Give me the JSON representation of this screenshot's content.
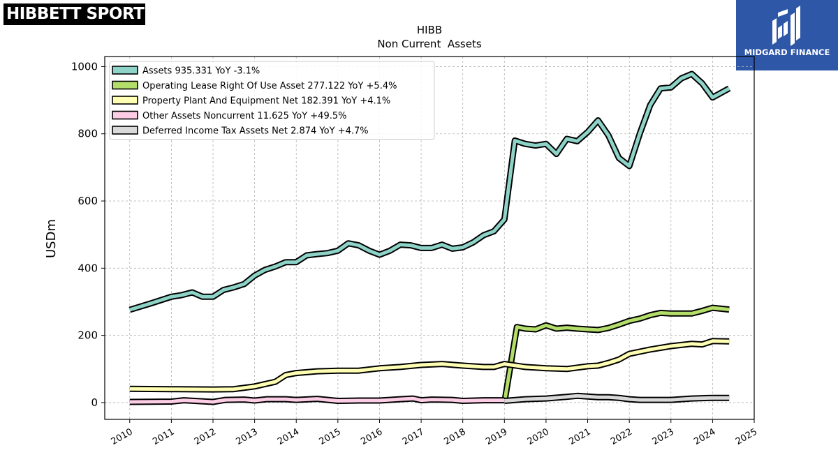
{
  "logos": {
    "left": {
      "text": "HIBBETT SPORTS",
      "mark": "®"
    },
    "right": {
      "text": "MIDGARD FINANCE",
      "icon": "midgard-m-icon"
    }
  },
  "chart_data": {
    "type": "line",
    "title": "HIBB",
    "subtitle": "Non Current  Assets",
    "ylabel": "USDm",
    "xlabel": "",
    "xlim": [
      2009.4,
      2025
    ],
    "ylim": [
      -50,
      1030
    ],
    "yticks": [
      0,
      200,
      400,
      600,
      800,
      1000
    ],
    "xticks": [
      2010,
      2011,
      2012,
      2013,
      2014,
      2015,
      2016,
      2017,
      2018,
      2019,
      2020,
      2021,
      2022,
      2023,
      2024,
      2025
    ],
    "grid": true,
    "legend_position": "top-left",
    "series": [
      {
        "name": "Assets  935.331 YoY -3.1%",
        "color": "#8dd3c7",
        "x": [
          2010.0,
          2010.5,
          2011.0,
          2011.25,
          2011.5,
          2011.75,
          2012.0,
          2012.25,
          2012.5,
          2012.75,
          2013.0,
          2013.25,
          2013.5,
          2013.75,
          2014.0,
          2014.25,
          2014.5,
          2014.75,
          2015.0,
          2015.25,
          2015.5,
          2015.75,
          2016.0,
          2016.25,
          2016.5,
          2016.75,
          2017.0,
          2017.25,
          2017.5,
          2017.75,
          2018.0,
          2018.25,
          2018.5,
          2018.75,
          2019.0,
          2019.25,
          2019.5,
          2019.75,
          2020.0,
          2020.25,
          2020.5,
          2020.75,
          2021.0,
          2021.25,
          2021.5,
          2021.75,
          2022.0,
          2022.25,
          2022.5,
          2022.75,
          2023.0,
          2023.25,
          2023.5,
          2023.75,
          2024.0,
          2024.4
        ],
        "values": [
          276,
          295,
          315,
          320,
          328,
          315,
          315,
          335,
          343,
          353,
          378,
          395,
          405,
          418,
          418,
          438,
          442,
          445,
          452,
          474,
          468,
          452,
          440,
          452,
          470,
          468,
          460,
          460,
          470,
          458,
          462,
          477,
          498,
          510,
          545,
          780,
          770,
          765,
          770,
          740,
          785,
          778,
          805,
          840,
          795,
          728,
          704,
          800,
          885,
          935,
          938,
          965,
          978,
          950,
          908,
          935
        ]
      },
      {
        "name": "Operating Lease Right Of Use Asset  277.122 YoY +5.4%",
        "color": "#b3de69",
        "x": [
          2019.0,
          2019.3,
          2019.5,
          2019.75,
          2020.0,
          2020.25,
          2020.5,
          2020.75,
          2021.0,
          2021.25,
          2021.5,
          2021.75,
          2022.0,
          2022.25,
          2022.5,
          2022.75,
          2023.0,
          2023.25,
          2023.5,
          2023.75,
          2024.0,
          2024.4
        ],
        "values": [
          0,
          225,
          220,
          218,
          230,
          220,
          223,
          220,
          218,
          216,
          222,
          232,
          243,
          250,
          260,
          267,
          265,
          265,
          265,
          273,
          282,
          277
        ]
      },
      {
        "name": "Property Plant And Equipment Net  182.391 YoY +4.1%",
        "color": "#ffffb3",
        "x": [
          2010.0,
          2011.0,
          2012.0,
          2012.5,
          2013.0,
          2013.5,
          2013.75,
          2014.0,
          2014.5,
          2015.0,
          2015.5,
          2016.0,
          2016.5,
          2017.0,
          2017.5,
          2018.0,
          2018.5,
          2018.75,
          2019.0,
          2019.5,
          2020.0,
          2020.5,
          2021.0,
          2021.25,
          2021.5,
          2021.75,
          2022.0,
          2022.5,
          2023.0,
          2023.5,
          2023.75,
          2024.0,
          2024.4
        ],
        "values": [
          41,
          40,
          39,
          40,
          48,
          62,
          82,
          88,
          93,
          95,
          95,
          102,
          106,
          112,
          115,
          110,
          106,
          106,
          115,
          106,
          102,
          100,
          108,
          110,
          118,
          128,
          145,
          158,
          168,
          175,
          173,
          183,
          182
        ]
      },
      {
        "name": "Other Assets Noncurrent  11.625 YoY +49.5%",
        "color": "#fccde5",
        "x": [
          2010.0,
          2011.0,
          2011.3,
          2012.0,
          2012.3,
          2012.75,
          2013.0,
          2013.3,
          2013.75,
          2014.0,
          2014.5,
          2015.0,
          2015.5,
          2016.0,
          2016.5,
          2016.8,
          2017.0,
          2017.25,
          2017.75,
          2018.0,
          2018.5,
          2019.0
        ],
        "values": [
          2,
          3,
          7,
          2,
          8,
          9,
          6,
          10,
          10,
          8,
          11,
          5,
          6,
          6,
          10,
          12,
          7,
          9,
          8,
          5,
          7,
          7
        ]
      },
      {
        "name": "Deferred Income Tax Assets Net  2.874 YoY +4.7%",
        "color": "#d9d9d9",
        "x": [
          2019.0,
          2019.5,
          2020.0,
          2020.5,
          2020.75,
          2021.0,
          2021.25,
          2021.5,
          2021.75,
          2022.0,
          2022.25,
          2022.5,
          2022.75,
          2023.0,
          2023.5,
          2024.0,
          2024.4
        ],
        "values": [
          5,
          10,
          12,
          17,
          20,
          18,
          16,
          16,
          14,
          10,
          8,
          8,
          8,
          8,
          12,
          14,
          14
        ]
      }
    ]
  }
}
